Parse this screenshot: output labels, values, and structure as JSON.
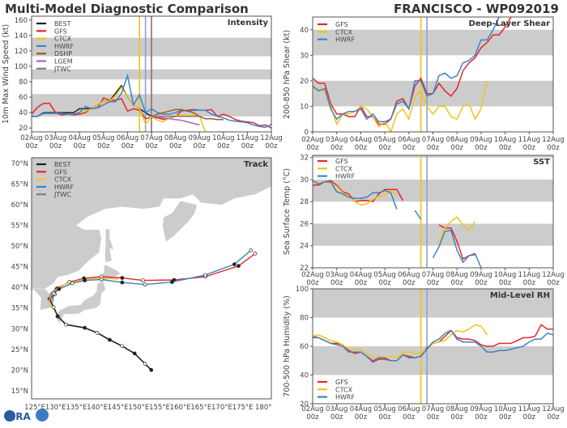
{
  "header": {
    "title": "Multi-Model Diagnostic Comparison",
    "storm": "FRANCISCO - WP092019"
  },
  "logo": {
    "text": "CIRA"
  },
  "colors": {
    "BEST": "#222222",
    "GFS": "#e8262a",
    "CTCX": "#f2c318",
    "HWRF": "#3a84c6",
    "DSHP": "#9b5a2e",
    "LGEM": "#b061c2",
    "JTWC": "#7f7f7f",
    "shade": "#cccccc",
    "land": "#cccccc"
  },
  "chart_data": [
    {
      "type": "line",
      "panel_label": "Intensity",
      "ylabel": "10m Max Wind Speed (kt)",
      "ylim": [
        15,
        165
      ],
      "y_ticks": [
        20,
        40,
        60,
        80,
        100,
        120,
        140,
        160
      ],
      "shaded_bands": [
        [
          35,
          64
        ],
        [
          83,
          96
        ],
        [
          113,
          137
        ]
      ],
      "x_tick_labels": [
        [
          "02Aug",
          "00z"
        ],
        [
          "03Aug",
          "00z"
        ],
        [
          "04Aug",
          "00z"
        ],
        [
          "05Aug",
          "00z"
        ],
        [
          "06Aug",
          "00z"
        ],
        [
          "07Aug",
          "00z"
        ],
        [
          "08Aug",
          "00z"
        ],
        [
          "09Aug",
          "00z"
        ],
        [
          "10Aug",
          "00z"
        ],
        [
          "11Aug",
          "00z"
        ],
        [
          "12Aug",
          "00z"
        ]
      ],
      "vertical_lines": [
        {
          "time": "06Aug 12z",
          "color": "#f2c318"
        },
        {
          "time": "06Aug 18z",
          "color": "#8fa3c8"
        },
        {
          "time": "07Aug 00z",
          "color": "#8a6f78"
        }
      ],
      "legend": "top-left",
      "interval_hours": 6,
      "series": [
        {
          "name": "BEST",
          "start": "02Aug 00z",
          "values": [
            35,
            35,
            40,
            40,
            40,
            40,
            40,
            40,
            45,
            45,
            45,
            50,
            55,
            55,
            65,
            75,
            60,
            50,
            45,
            40,
            35
          ]
        },
        {
          "name": "GFS",
          "start": "02Aug 00z",
          "values": [
            38,
            47,
            52,
            52,
            40,
            37,
            38,
            37,
            38,
            40,
            46,
            46,
            59,
            56,
            56,
            58,
            42,
            45,
            43,
            32,
            34,
            33,
            31,
            33,
            35,
            42,
            43,
            44,
            43,
            43,
            44,
            35,
            38,
            35,
            31,
            29,
            28,
            27,
            23,
            24,
            20
          ]
        },
        {
          "name": "CTCX",
          "start": "04Aug 00z",
          "values": [
            40,
            42,
            45,
            50,
            55,
            55,
            62,
            73,
            60,
            50,
            45,
            25,
            35,
            30,
            28,
            33,
            36,
            37,
            36,
            37,
            36,
            15
          ]
        },
        {
          "name": "HWRF",
          "start": "02Aug 00z",
          "values": [
            35,
            35,
            39,
            39,
            39,
            39,
            38,
            38,
            40,
            48,
            45,
            46,
            50,
            54,
            54,
            65,
            88,
            50,
            63,
            40,
            45,
            40,
            38,
            38,
            40,
            43,
            42,
            43,
            43,
            43,
            38,
            35,
            33,
            30,
            29,
            28,
            27,
            24,
            22,
            21,
            25
          ]
        },
        {
          "name": "DSHP",
          "start": "07Aug 00z",
          "values": [
            35,
            38,
            40,
            42,
            44,
            44,
            42,
            40,
            35,
            32,
            32,
            31,
            31
          ]
        },
        {
          "name": "LGEM",
          "start": "07Aug 00z",
          "values": [
            35,
            34,
            33,
            32,
            31,
            30,
            28,
            26,
            24
          ]
        },
        {
          "name": "JTWC",
          "start": "07Aug 00z",
          "values": [
            35,
            35,
            35,
            35,
            35,
            35,
            35,
            35,
            35
          ]
        }
      ]
    },
    {
      "type": "line",
      "panel_label": "Deep-Layer Shear",
      "ylabel": "200-850 hPa Shear (kt)",
      "ylim": [
        0,
        45
      ],
      "y_ticks": [
        0,
        10,
        20,
        30,
        40
      ],
      "shaded_bands": [
        [
          10,
          20
        ],
        [
          30,
          40
        ]
      ],
      "x_tick_labels": [
        [
          "02Aug",
          "00z"
        ],
        [
          "03Aug",
          "00z"
        ],
        [
          "04Aug",
          "00z"
        ],
        [
          "05Aug",
          "00z"
        ],
        [
          "06Aug",
          "00z"
        ],
        [
          "07Aug",
          "00z"
        ],
        [
          "08Aug",
          "00z"
        ],
        [
          "09Aug",
          "00z"
        ],
        [
          "10Aug",
          "00z"
        ],
        [
          "11Aug",
          "00z"
        ],
        [
          "12Aug",
          "00z"
        ]
      ],
      "vertical_lines": [
        {
          "time": "06Aug 12z",
          "color": "#f2c318"
        },
        {
          "time": "06Aug 18z",
          "color": "#8fa3c8"
        }
      ],
      "legend": "top-left",
      "interval_hours": 6,
      "series": [
        {
          "name": "GFS",
          "start": "02Aug 00z",
          "values": [
            21,
            19,
            19,
            11,
            7,
            7,
            6,
            6,
            10,
            6,
            6,
            3,
            3,
            5,
            12,
            13,
            9,
            18,
            21,
            15,
            15,
            19,
            16,
            14,
            17,
            24,
            27,
            29,
            33,
            35,
            38,
            38,
            41,
            45
          ]
        },
        {
          "name": "CTCX",
          "start": "02Aug 00z",
          "values": [
            17,
            17,
            16,
            10,
            3,
            7,
            7,
            8,
            10,
            9,
            6,
            2,
            4,
            0,
            7,
            9,
            5,
            14,
            16,
            10,
            7,
            10,
            10,
            6,
            5,
            10,
            11,
            5,
            9,
            20
          ]
        },
        {
          "name": "HWRF",
          "start": "02Aug 00z",
          "values": [
            18,
            16,
            17,
            9,
            5,
            7,
            8,
            8,
            9,
            5,
            7,
            4,
            4,
            5,
            11,
            12,
            9,
            20,
            20,
            14,
            15,
            22,
            23,
            21,
            22,
            27,
            28,
            30,
            36,
            36,
            40,
            45
          ]
        }
      ]
    },
    {
      "type": "line",
      "panel_label": "SST",
      "ylabel": "Sea Surface Temp (°C)",
      "ylim": [
        22,
        32.2
      ],
      "y_ticks": [
        22,
        24,
        26,
        28,
        30,
        32
      ],
      "shaded_bands": [
        [
          24,
          26
        ],
        [
          28,
          30
        ],
        [
          32,
          33
        ]
      ],
      "x_tick_labels": [
        [
          "02Aug",
          "00z"
        ],
        [
          "03Aug",
          "00z"
        ],
        [
          "04Aug",
          "00z"
        ],
        [
          "05Aug",
          "00z"
        ],
        [
          "06Aug",
          "00z"
        ],
        [
          "07Aug",
          "00z"
        ],
        [
          "08Aug",
          "00z"
        ],
        [
          "09Aug",
          "00z"
        ],
        [
          "10Aug",
          "00z"
        ],
        [
          "11Aug",
          "00z"
        ],
        [
          "12Aug",
          "00z"
        ]
      ],
      "vertical_lines": [
        {
          "time": "06Aug 12z",
          "color": "#f2c318"
        },
        {
          "time": "06Aug 18z",
          "color": "#8fa3c8"
        }
      ],
      "legend": "top-left",
      "interval_hours": 6,
      "series": [
        {
          "name": "GFS",
          "start": "02Aug 00z",
          "values": [
            29.5,
            29.5,
            29.8,
            29.9,
            29.5,
            28.9,
            28.7,
            28.0,
            28.1,
            28.1,
            28.0,
            28.7,
            29.1,
            29.1,
            29.1,
            28.1,
            null,
            null,
            null,
            null,
            null,
            25.9,
            25.6,
            25.6,
            24.4,
            22.8,
            23.1,
            23.2
          ]
        },
        {
          "name": "CTCX",
          "start": "02Aug 00z",
          "values": [
            29.9,
            29.7,
            29.8,
            29.7,
            29.4,
            28.8,
            28.5,
            28.0,
            27.7,
            27.8,
            28.2,
            28.5,
            28.6,
            29.0,
            28.6,
            null,
            null,
            null,
            null,
            null,
            null,
            24.2,
            25.6,
            26.2,
            26.6,
            25.9,
            25.4,
            26.2
          ]
        },
        {
          "name": "HWRF",
          "start": "02Aug 00z",
          "values": [
            29.9,
            29.6,
            29.8,
            29.8,
            28.9,
            28.7,
            28.4,
            28.3,
            28.3,
            28.4,
            28.8,
            28.8,
            29.0,
            28.8,
            27.3,
            null,
            null,
            27.2,
            26.4,
            null,
            22.9,
            23.9,
            25.3,
            25.4,
            23.6,
            22.5,
            23.1,
            23.3,
            21.5
          ]
        }
      ]
    },
    {
      "type": "line",
      "panel_label": "Mid-Level RH",
      "ylabel": "700-500 hPa Humidity (%)",
      "ylim": [
        20,
        100
      ],
      "y_ticks": [
        20,
        40,
        60,
        80,
        100
      ],
      "shaded_bands": [
        [
          40,
          60
        ],
        [
          80,
          100
        ]
      ],
      "x_tick_labels": [
        [
          "02Aug",
          "00z"
        ],
        [
          "03Aug",
          "00z"
        ],
        [
          "04Aug",
          "00z"
        ],
        [
          "05Aug",
          "00z"
        ],
        [
          "06Aug",
          "00z"
        ],
        [
          "07Aug",
          "00z"
        ],
        [
          "08Aug",
          "00z"
        ],
        [
          "09Aug",
          "00z"
        ],
        [
          "10Aug",
          "00z"
        ],
        [
          "11Aug",
          "00z"
        ],
        [
          "12Aug",
          "00z"
        ]
      ],
      "vertical_lines": [
        {
          "time": "06Aug 12z",
          "color": "#f2c318"
        },
        {
          "time": "06Aug 18z",
          "color": "#8fa3c8"
        }
      ],
      "legend": "bottom-left",
      "interval_hours": 6,
      "series": [
        {
          "name": "GFS",
          "start": "02Aug 00z",
          "values": [
            67,
            66,
            64,
            62,
            62,
            61,
            57,
            55,
            56,
            53,
            49,
            51,
            51,
            50,
            50,
            54,
            53,
            52,
            53,
            59,
            62,
            63,
            67,
            71,
            66,
            65,
            65,
            64,
            61,
            60,
            60,
            62,
            62,
            62,
            64,
            66,
            66,
            67,
            75,
            72,
            72
          ]
        },
        {
          "name": "CTCX",
          "start": "02Aug 00z",
          "values": [
            67,
            68,
            66,
            64,
            63,
            61,
            58,
            58,
            58,
            55,
            52,
            53,
            52,
            53,
            52,
            56,
            56,
            55,
            55,
            58,
            62,
            63,
            64,
            68,
            71,
            70,
            72,
            75,
            74,
            68
          ]
        },
        {
          "name": "HWRF",
          "start": "02Aug 00z",
          "values": [
            66,
            66,
            64,
            62,
            61,
            60,
            56,
            56,
            56,
            53,
            50,
            52,
            52,
            50,
            50,
            54,
            52,
            52,
            53,
            58,
            63,
            65,
            69,
            71,
            65,
            63,
            63,
            63,
            60,
            56,
            56,
            57,
            57,
            58,
            59,
            60,
            63,
            65,
            65,
            69,
            68
          ]
        }
      ]
    },
    {
      "type": "map",
      "panel_label": "Track",
      "lon_range": [
        124.2,
        181.9
      ],
      "lat_range": [
        13,
        71.4
      ],
      "lon_ticks": [
        "125°E",
        "130°E",
        "135°E",
        "140°E",
        "145°E",
        "150°E",
        "155°E",
        "160°E",
        "165°E",
        "170°E",
        "175°E",
        "180°"
      ],
      "lat_ticks": [
        "15°N",
        "20°N",
        "25°N",
        "30°N",
        "35°N",
        "40°N",
        "45°N",
        "50°N",
        "55°N",
        "60°N",
        "65°N",
        "70°N"
      ],
      "legend": "top-left",
      "series": [
        {
          "name": "BEST",
          "points": [
            [
              153,
              20
            ],
            [
              151.5,
              21.5
            ],
            [
              149,
              24
            ],
            [
              146,
              25.8
            ],
            [
              143,
              27.3
            ],
            [
              140,
              29
            ],
            [
              137,
              30.2
            ],
            [
              132.5,
              31
            ],
            [
              130.5,
              33
            ],
            [
              129.5,
              35.2
            ],
            [
              128.5,
              37.2
            ],
            [
              129.8,
              38.3
            ],
            [
              130.2,
              39.6
            ]
          ],
          "markers": true
        },
        {
          "name": "GFS",
          "points": [
            [
              128.5,
              36.5
            ],
            [
              129.2,
              38.5
            ],
            [
              130.5,
              39.8
            ],
            [
              133.3,
              41.3
            ],
            [
              136.8,
              42.2
            ],
            [
              141,
              42.6
            ],
            [
              146,
              42.3
            ],
            [
              151,
              41.7
            ],
            [
              158.5,
              41.8
            ],
            [
              166,
              42.6
            ],
            [
              174,
              45.2
            ],
            [
              178,
              48.2
            ]
          ],
          "markers": true
        },
        {
          "name": "CTCX",
          "points": [
            [
              128.6,
              35.3
            ],
            [
              128.4,
              37
            ],
            [
              129.5,
              39
            ],
            [
              131,
              40.3
            ],
            [
              134,
              41.3
            ],
            [
              137.5,
              42
            ],
            [
              141,
              42.3
            ],
            [
              145,
              42
            ]
          ],
          "markers": false
        },
        {
          "name": "HWRF",
          "points": [
            [
              129.3,
              36.5
            ],
            [
              129.5,
              38.5
            ],
            [
              130.8,
              39.6
            ],
            [
              134,
              41
            ],
            [
              137,
              41.7
            ],
            [
              141,
              41.9
            ],
            [
              146,
              41.2
            ],
            [
              151.5,
              40.7
            ],
            [
              158,
              41.3
            ],
            [
              166,
              43
            ],
            [
              173,
              45.6
            ],
            [
              177,
              49
            ]
          ],
          "markers": true
        },
        {
          "name": "JTWC",
          "points": [
            [
              128.3,
              36.8
            ],
            [
              128.7,
              38.2
            ],
            [
              129.8,
              39.5
            ]
          ],
          "markers": false
        }
      ]
    }
  ]
}
